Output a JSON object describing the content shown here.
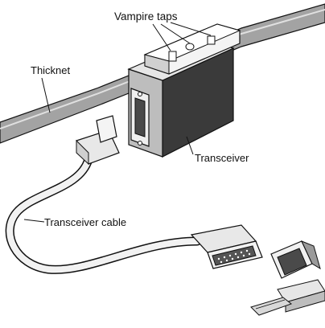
{
  "diagram": {
    "labels": {
      "vampire_taps": "Vampire taps",
      "thicknet": "Thicknet",
      "transceiver": "Transceiver",
      "transceiver_cable": "Transceiver cable"
    },
    "colors": {
      "ink": "#111111",
      "dark_fill": "#3a3a3a",
      "mid_gray": "#9a9a9a",
      "light_gray": "#d9d9d9",
      "paper": "#ffffff"
    }
  }
}
